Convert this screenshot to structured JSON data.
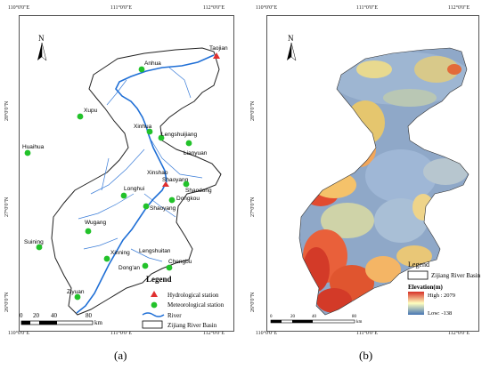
{
  "panel_a": {
    "caption": "(a)",
    "coords_top": [
      "110°0'0\"E",
      "111°0'0\"E",
      "112°0'0\"E"
    ],
    "coords_bottom": [
      "110°0'0\"E",
      "111°0'0\"E",
      "112°0'0\"E"
    ],
    "coords_left": [
      "28°0'0\"N",
      "27°0'0\"N",
      "26°0'0\"N"
    ],
    "north": "N",
    "scalebar": {
      "ticks": [
        "0",
        "20",
        "40",
        "80"
      ],
      "unit": "km"
    },
    "stations": [
      {
        "name": "Taojian",
        "type": "hydrological"
      },
      {
        "name": "Anhua",
        "type": "meteorological"
      },
      {
        "name": "Xupu",
        "type": "meteorological"
      },
      {
        "name": "Xinhua",
        "type": "meteorological"
      },
      {
        "name": "Lengshuijiang",
        "type": "meteorological"
      },
      {
        "name": "Lianyuan",
        "type": "meteorological"
      },
      {
        "name": "Huaihua",
        "type": "meteorological"
      },
      {
        "name": "Xinshao",
        "type": "meteorological"
      },
      {
        "name": "Shaoyang",
        "type": "hydrological"
      },
      {
        "name": "Shaodong",
        "type": "meteorological"
      },
      {
        "name": "Longhui",
        "type": "meteorological"
      },
      {
        "name": "Dongkou",
        "type": "meteorological"
      },
      {
        "name": "Shaoyang",
        "type": "meteorological"
      },
      {
        "name": "Wugang",
        "type": "meteorological"
      },
      {
        "name": "Suining",
        "type": "meteorological"
      },
      {
        "name": "Xinning",
        "type": "meteorological"
      },
      {
        "name": "Lengshuitan",
        "type": "meteorological"
      },
      {
        "name": "Dong'an",
        "type": "meteorological"
      },
      {
        "name": "Chengbu",
        "type": "meteorological"
      },
      {
        "name": "Ziyuan",
        "type": "meteorological"
      }
    ],
    "legend": {
      "title": "Legend",
      "items": [
        "Hydrological station",
        "Meteorological station",
        "River",
        "Zijiang River Basin"
      ]
    }
  },
  "panel_b": {
    "caption": "(b)",
    "coords_top": [
      "110°0'0\"E",
      "111°0'0\"E",
      "112°0'0\"E"
    ],
    "coords_bottom": [
      "110°0'0\"E",
      "111°0'0\"E",
      "112°0'0\"E"
    ],
    "coords_left": [
      "28°0'0\"N",
      "27°0'0\"N",
      "26°0'0\"N"
    ],
    "north": "N",
    "legend": {
      "title": "Legend",
      "basin_label": "Zijiang River Basin",
      "elevation_title": "Elevation(m)",
      "high_label": "High : 2079",
      "low_label": "Low: -138"
    },
    "scalebar": {
      "ticks": [
        "0",
        "20",
        "40",
        "80"
      ],
      "unit": "km"
    },
    "colors": {
      "high": "#d73027",
      "mid": "#ffffbf",
      "low": "#4575b4"
    }
  }
}
